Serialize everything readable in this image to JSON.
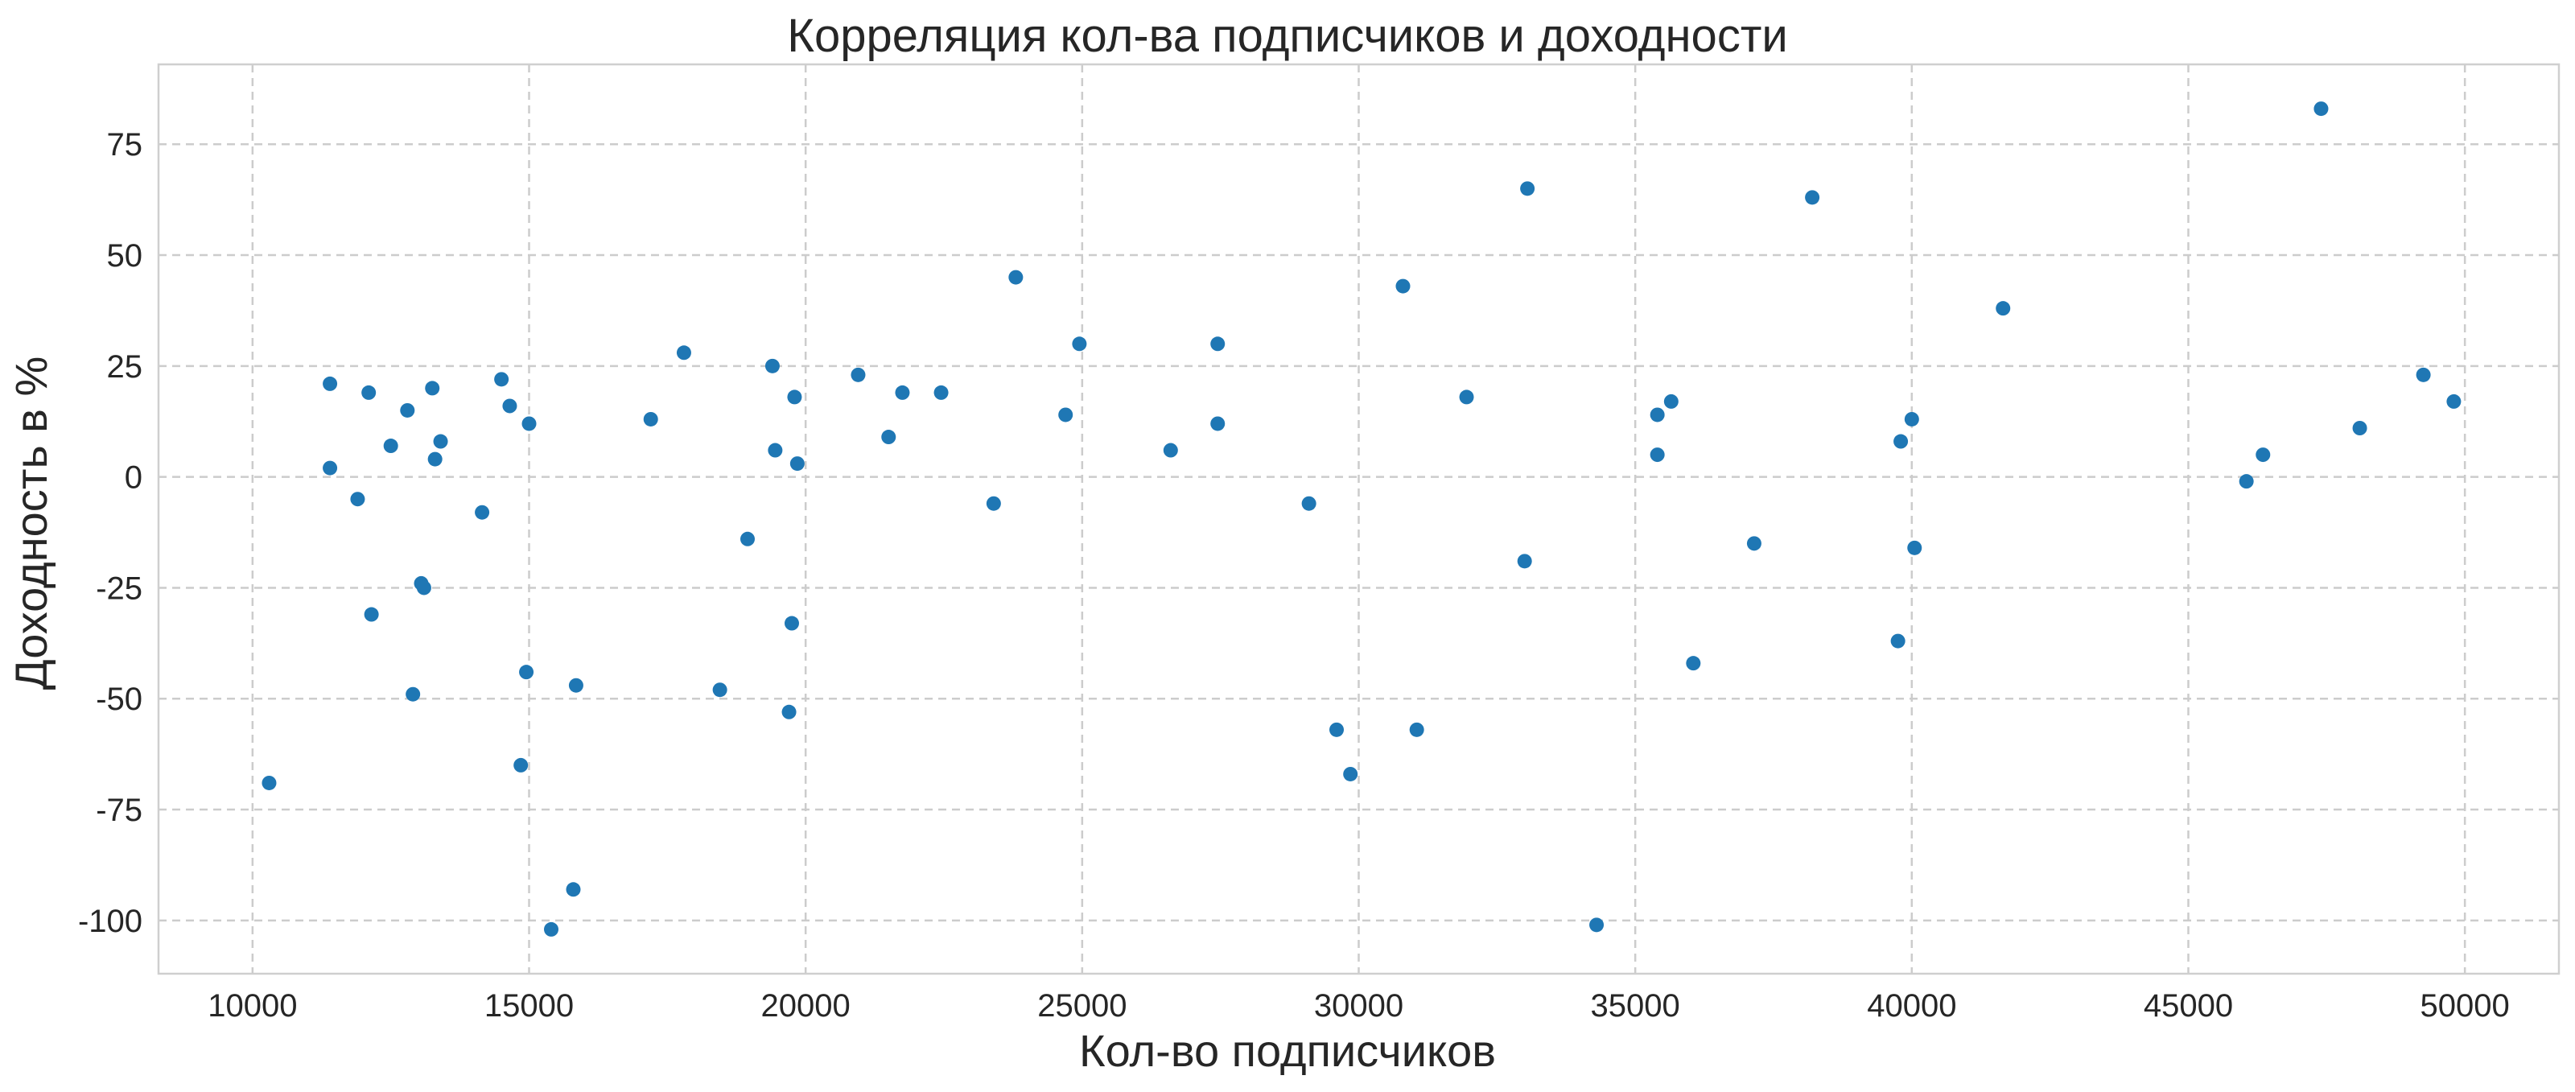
{
  "chart_data": {
    "type": "scatter",
    "title": "Корреляция кол-ва подписчиков и доходности",
    "xlabel": "Кол-во подписчиков",
    "ylabel": "Доходность в %",
    "xlim": [
      8300,
      51700
    ],
    "ylim": [
      -112,
      93
    ],
    "xticks": [
      10000,
      15000,
      20000,
      25000,
      30000,
      35000,
      40000,
      45000,
      50000
    ],
    "yticks": [
      75,
      50,
      25,
      0,
      -25,
      -50,
      -75,
      -100
    ],
    "grid": true,
    "marker_color": "#1f77b4",
    "series": [
      {
        "x": [
          10300,
          11400,
          11400,
          11900,
          12100,
          12150,
          12500,
          12800,
          12900,
          13050,
          13100,
          13250,
          13300,
          13400,
          14150,
          14500,
          14650,
          14850,
          14950,
          15000,
          15400,
          15800,
          15850,
          17200,
          17800,
          18450,
          18950,
          19400,
          19450,
          19700,
          19750,
          19800,
          19850,
          20950,
          21500,
          21750,
          22450,
          23400,
          23800,
          24700,
          24950,
          26600,
          27450,
          27450,
          29100,
          29600,
          29850,
          30800,
          31050,
          31950,
          33000,
          33050,
          34300,
          35400,
          35400,
          35650,
          36050,
          37150,
          38200,
          39750,
          39800,
          40000,
          40050,
          41650,
          46050,
          46350,
          47400,
          48100,
          49250,
          49800
        ],
        "y": [
          -69,
          2,
          21,
          -5,
          19,
          -31,
          7,
          15,
          -49,
          -24,
          -25,
          20,
          4,
          8,
          -8,
          22,
          16,
          -65,
          -44,
          12,
          -102,
          -93,
          -47,
          13,
          28,
          -48,
          -14,
          25,
          6,
          -53,
          -33,
          18,
          3,
          23,
          9,
          19,
          19,
          -6,
          45,
          14,
          30,
          6,
          12,
          30,
          -6,
          -57,
          -67,
          43,
          -57,
          18,
          -19,
          65,
          -101,
          5,
          14,
          17,
          -42,
          -15,
          63,
          -37,
          8,
          13,
          -16,
          38,
          -1,
          5,
          83,
          11,
          23,
          17
        ]
      }
    ]
  }
}
